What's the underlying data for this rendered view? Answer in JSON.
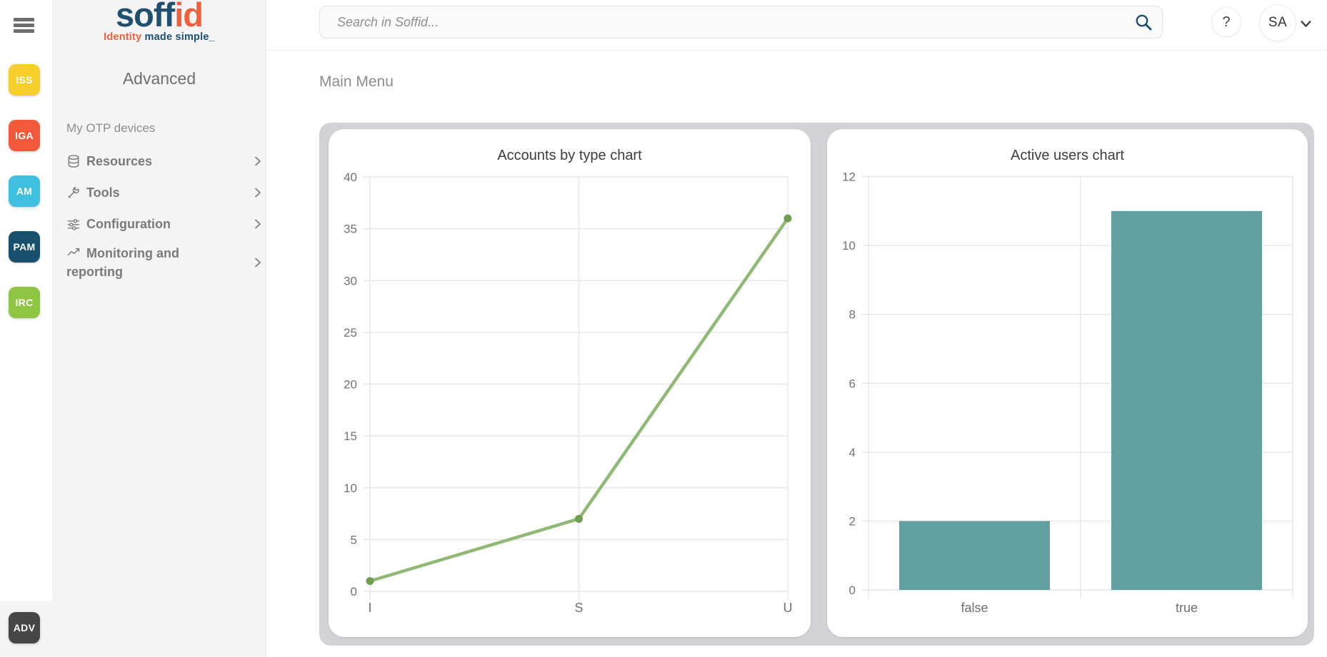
{
  "topbar": {
    "search_placeholder": "Search in Soffid...",
    "help_label": "?",
    "user_initials": "SA"
  },
  "rail": {
    "badges": [
      {
        "label": "ISS",
        "color": "#f6cf2b"
      },
      {
        "label": "IGA",
        "color": "#f2593b"
      },
      {
        "label": "AM",
        "color": "#3fc0e0"
      },
      {
        "label": "PAM",
        "color": "#174f6d"
      },
      {
        "label": "IRC",
        "color": "#8ec543"
      }
    ],
    "bottom_badge": {
      "label": "ADV",
      "color": "#464646"
    }
  },
  "sidebar": {
    "logo": {
      "word_part1": "soff",
      "word_part2": "id",
      "tagline_part1": "Identity",
      "tagline_part2": " made simple_"
    },
    "edition": "Advanced",
    "items": [
      {
        "label": "My OTP devices"
      },
      {
        "label": "Resources"
      },
      {
        "label": "Tools"
      },
      {
        "label": "Configuration"
      },
      {
        "label": "Monitoring and reporting"
      }
    ]
  },
  "main": {
    "heading": "Main Menu"
  },
  "chart_data": [
    {
      "type": "line",
      "title": "Accounts by type chart",
      "categories": [
        "I",
        "S",
        "U"
      ],
      "values": [
        1,
        7,
        36
      ],
      "ylim": [
        0,
        40
      ],
      "ytick_step": 5,
      "grid": true,
      "line_color": "#8fb974",
      "point_color": "#6f9e50"
    },
    {
      "type": "bar",
      "title": "Active users chart",
      "categories": [
        "false",
        "true"
      ],
      "values": [
        2,
        11
      ],
      "ylim": [
        0,
        12
      ],
      "ytick_step": 2,
      "grid": true,
      "bar_color": "#63a0a1"
    }
  ]
}
